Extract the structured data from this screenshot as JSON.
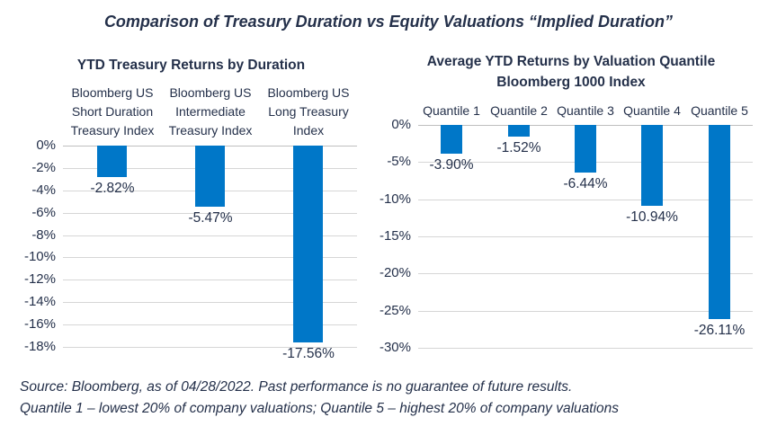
{
  "page_title": "Comparison of Treasury Duration vs Equity Valuations “Implied Duration”",
  "colors": {
    "bar": "#0077C8",
    "text": "#24304A",
    "gridline": "#D6D6D6"
  },
  "chart_data": [
    {
      "id": "treasury",
      "type": "bar",
      "title": "YTD Treasury Returns by Duration",
      "categories": [
        "Bloomberg US Short Duration Treasury Index",
        "Bloomberg US Intermediate Treasury Index",
        "Bloomberg US Long Treasury Index"
      ],
      "values": [
        -2.82,
        -5.47,
        -17.56
      ],
      "data_labels": [
        "-2.82%",
        "-5.47%",
        "-17.56%"
      ],
      "ylim": [
        -18,
        0
      ],
      "ytick_step": 2,
      "yticks": [
        "0%",
        "-2%",
        "-4%",
        "-6%",
        "-8%",
        "-10%",
        "-12%",
        "-14%",
        "-16%",
        "-18%"
      ],
      "grid": true,
      "legend": "none",
      "bar_color": "#0077C8"
    },
    {
      "id": "quantile",
      "type": "bar",
      "title": "Average YTD Returns by Valuation Quantile",
      "subtitle": "Bloomberg 1000 Index",
      "categories": [
        "Quantile 1",
        "Quantile 2",
        "Quantile 3",
        "Quantile 4",
        "Quantile 5"
      ],
      "values": [
        -3.9,
        -1.52,
        -6.44,
        -10.94,
        -26.11
      ],
      "data_labels": [
        "-3.90%",
        "-1.52%",
        "-6.44%",
        "-10.94%",
        "-26.11%"
      ],
      "ylim": [
        -30,
        0
      ],
      "ytick_step": 5,
      "yticks": [
        "0%",
        "-5%",
        "-10%",
        "-15%",
        "-20%",
        "-25%",
        "-30%"
      ],
      "grid": true,
      "legend": "none",
      "bar_color": "#0077C8"
    }
  ],
  "footer": {
    "line1": "Source: Bloomberg, as of 04/28/2022. Past performance is no guarantee of future results.",
    "line2": "Quantile 1 – lowest 20% of company valuations; Quantile 5 – highest 20% of company valuations"
  }
}
